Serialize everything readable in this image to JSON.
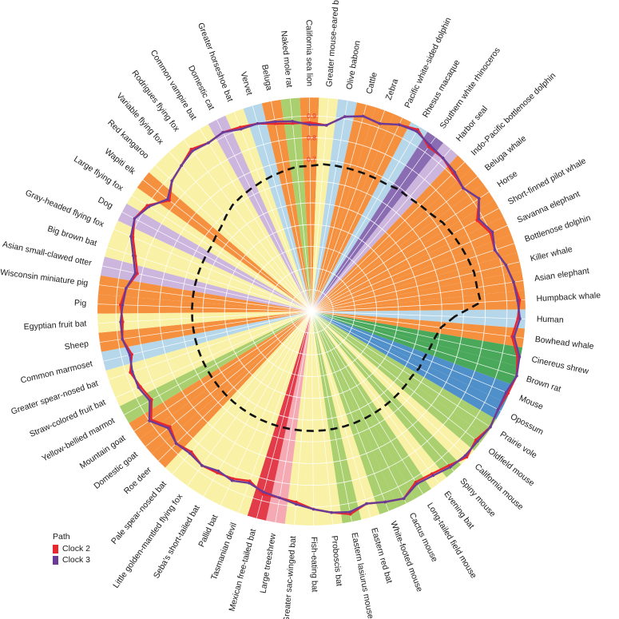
{
  "chart_data": {
    "type": "radar",
    "categories": [
      "Human",
      "Bowhead whale",
      "Cinereus shrew",
      "Brown rat",
      "Mouse",
      "Opossum",
      "Prairie vole",
      "Oldfield mouse",
      "California mouse",
      "Spiny mouse",
      "Evening bat",
      "Long-tailed field mouse",
      "Cactus mouse",
      "White-footed mouse",
      "Eastern red bat",
      "Eastern lasiurus mouse",
      "Proboscis bat",
      "Fish-eating bat",
      "Greater sac-winged bat",
      "Large treeshrew",
      "Mexican free-tailed bat",
      "Tasmanian devil",
      "Pallid bat",
      "Seba's short-tailed bat",
      "Little golden-mantled flying fox",
      "Pale spear-nosed bat",
      "Roe deer",
      "Domestic goat",
      "Mountain goat",
      "Yellow-bellied marmot",
      "Straw-colored fruit bat",
      "Greater spear-nosed bat",
      "Common marmoset",
      "Sheep",
      "Egyptian fruit bat",
      "Pig",
      "Wisconsin miniature pig",
      "Asian small-clawed otter",
      "Big brown bat",
      "Gray-headed flying fox",
      "Dog",
      "Large flying fox",
      "Wapiti elk",
      "Red kangaroo",
      "Variable flying fox",
      "Rodrigues flying fox",
      "Common vampire bat",
      "Domestic cat",
      "Greater horseshoe bat",
      "Vervet",
      "Beluga",
      "Naked mole rat",
      "California sea lion",
      "Greater mouse-eared bat",
      "Olive baboon",
      "Cattle",
      "Zebra",
      "Pacific white-sided dolphin",
      "Rhesus macaque",
      "Southern white rhinoceros",
      "Harbor seal",
      "Indo-Pacific bottlenose dolphin",
      "Beluga whale",
      "Horse",
      "Short-finned pilot whale",
      "Savanna elephant",
      "Bottlenose dolphin",
      "Killer whale",
      "Asian elephant",
      "Humpback whale"
    ],
    "sector_colors": [
      "#b6d7ea",
      "#f5903e",
      "#4aa85a",
      "#4aa85a",
      "#4f8fca",
      "#4f8fca",
      "#a9cf6e",
      "#a9cf6e",
      "#f9f1a5",
      "#a9cf6e",
      "#f9f1a5",
      "#a9cf6e",
      "#a9cf6e",
      "#a9cf6e",
      "#f9f1a5",
      "#a9cf6e",
      "#f9f1a5",
      "#f9f1a5",
      "#f9f1a5",
      "#f4a9b3",
      "#e23b4a",
      "#f9f1a5",
      "#f9f1a5",
      "#f9f1a5",
      "#f9f1a5",
      "#f9f1a5",
      "#f5903e",
      "#f5903e",
      "#f5903e",
      "#a9cf6e",
      "#f9f1a5",
      "#f9f1a5",
      "#b6d7ea",
      "#f5903e",
      "#f9f1a5",
      "#f5903e",
      "#f5903e",
      "#cdb6dd",
      "#f9f1a5",
      "#f9f1a5",
      "#cdb6dd",
      "#f9f1a5",
      "#f5903e",
      "#f9f1a5",
      "#f9f1a5",
      "#f9f1a5",
      "#f9f1a5",
      "#cdb6dd",
      "#f9f1a5",
      "#b6d7ea",
      "#f5903e",
      "#a9cf6e",
      "#f5903e",
      "#f9f1a5",
      "#b6d7ea",
      "#f5903e",
      "#f5903e",
      "#f5903e",
      "#b6d7ea",
      "#8a6cb3",
      "#cdb6dd",
      "#f5903e",
      "#f5903e",
      "#f5903e",
      "#f5903e",
      "#f5903e",
      "#f5903e",
      "#f5903e",
      "#f5903e",
      "#f5903e"
    ],
    "radial_ticks": [
      0.7,
      0.8,
      0.9
    ],
    "rlim": [
      0,
      1.0
    ],
    "series": [
      {
        "name": "Clock 2",
        "color": "#e8262e",
        "values": [
          0.95,
          0.93,
          0.97,
          0.99,
          0.98,
          0.97,
          0.98,
          0.96,
          0.98,
          0.95,
          0.93,
          0.92,
          0.96,
          0.94,
          0.92,
          0.95,
          0.93,
          0.91,
          0.88,
          0.87,
          0.87,
          0.83,
          0.85,
          0.86,
          0.87,
          0.85,
          0.87,
          0.84,
          0.89,
          0.84,
          0.86,
          0.88,
          0.85,
          0.88,
          0.87,
          0.88,
          0.86,
          0.82,
          0.85,
          0.89,
          0.92,
          0.9,
          0.83,
          0.88,
          0.9,
          0.93,
          0.91,
          0.92,
          0.91,
          0.9,
          0.88,
          0.87,
          0.87,
          0.86,
          0.91,
          0.93,
          0.92,
          0.95,
          0.97,
          0.93,
          0.93,
          0.91,
          0.9,
          0.93,
          0.87,
          0.9,
          0.89,
          0.92,
          0.94,
          0.96
        ]
      },
      {
        "name": "Clock 3",
        "color": "#6a3c98",
        "values": [
          0.96,
          0.94,
          0.98,
          0.99,
          0.97,
          0.97,
          0.98,
          0.97,
          0.97,
          0.96,
          0.94,
          0.93,
          0.96,
          0.94,
          0.92,
          0.94,
          0.93,
          0.91,
          0.89,
          0.87,
          0.86,
          0.84,
          0.86,
          0.85,
          0.87,
          0.86,
          0.87,
          0.85,
          0.9,
          0.85,
          0.87,
          0.87,
          0.86,
          0.88,
          0.88,
          0.87,
          0.86,
          0.83,
          0.86,
          0.9,
          0.92,
          0.89,
          0.84,
          0.88,
          0.9,
          0.92,
          0.91,
          0.92,
          0.9,
          0.9,
          0.89,
          0.88,
          0.86,
          0.86,
          0.91,
          0.93,
          0.92,
          0.95,
          0.96,
          0.94,
          0.93,
          0.92,
          0.9,
          0.93,
          0.88,
          0.91,
          0.89,
          0.92,
          0.94,
          0.95
        ]
      },
      {
        "name": "",
        "color": "#111111",
        "style": "dashed",
        "values": [
          0.66,
          0.6,
          0.58,
          0.57,
          0.56,
          0.56,
          0.55,
          0.55,
          0.55,
          0.55,
          0.55,
          0.55,
          0.55,
          0.55,
          0.55,
          0.55,
          0.55,
          0.55,
          0.55,
          0.55,
          0.55,
          0.55,
          0.55,
          0.55,
          0.55,
          0.55,
          0.55,
          0.55,
          0.55,
          0.55,
          0.55,
          0.55,
          0.55,
          0.55,
          0.55,
          0.55,
          0.55,
          0.55,
          0.55,
          0.55,
          0.55,
          0.55,
          0.56,
          0.57,
          0.59,
          0.61,
          0.62,
          0.63,
          0.64,
          0.65,
          0.66,
          0.67,
          0.67,
          0.68,
          0.68,
          0.68,
          0.68,
          0.68,
          0.68,
          0.69,
          0.69,
          0.7,
          0.71,
          0.73,
          0.74,
          0.75,
          0.76,
          0.77,
          0.77,
          0.78
        ]
      }
    ],
    "legend": {
      "title": "Path",
      "position": "bottom-left"
    }
  },
  "legend": {
    "title": "Path",
    "items": [
      "Clock 2",
      "Clock 3"
    ]
  }
}
